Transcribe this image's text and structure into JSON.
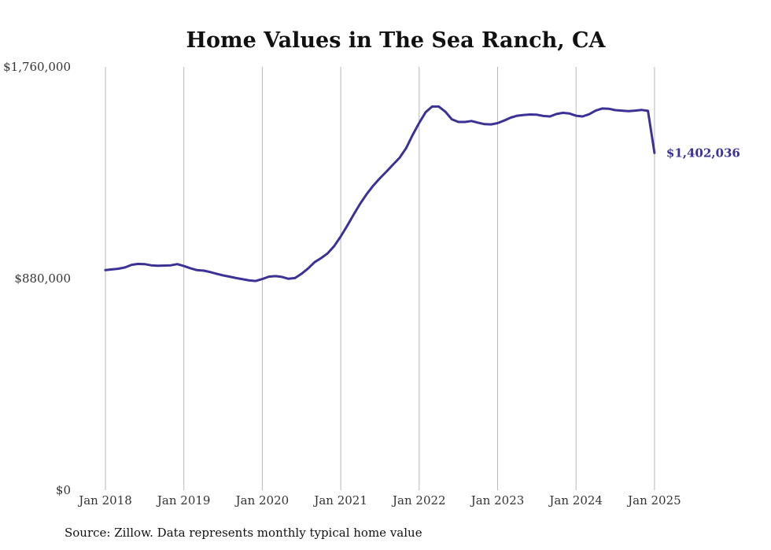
{
  "chart_data": {
    "type": "line",
    "title": "Home Values in The Sea Ranch, CA",
    "xlabel": "",
    "ylabel": "",
    "ylim": [
      0,
      1760000
    ],
    "y_ticks": [
      0,
      880000,
      1760000
    ],
    "y_tick_labels": [
      "$0",
      "$880,000",
      "$1,760,000"
    ],
    "x_tick_labels": [
      "Jan 2018",
      "Jan 2019",
      "Jan 2020",
      "Jan 2021",
      "Jan 2022",
      "Jan 2023",
      "Jan 2024",
      "Jan 2025"
    ],
    "grid": "vertical",
    "line_color": "#3b3196",
    "end_label": "$1,402,036",
    "series": [
      {
        "values": [
          915000,
          918000,
          921000,
          926000,
          937000,
          941000,
          940000,
          935000,
          933000,
          934000,
          935000,
          940000,
          932000,
          923000,
          915000,
          913000,
          907000,
          900000,
          893000,
          888000,
          882000,
          877000,
          872000,
          870000,
          878000,
          888000,
          890000,
          887000,
          879000,
          882000,
          900000,
          922000,
          948000,
          965000,
          985000,
          1015000,
          1055000,
          1100000,
          1147000,
          1192000,
          1232000,
          1267000,
          1297000,
          1325000,
          1354000,
          1382000,
          1422000,
          1477000,
          1527000,
          1572000,
          1595000,
          1595000,
          1574000,
          1542000,
          1531000,
          1531000,
          1535000,
          1528000,
          1522000,
          1521000,
          1526000,
          1537000,
          1549000,
          1557000,
          1560000,
          1562000,
          1561000,
          1556000,
          1554000,
          1564000,
          1569000,
          1566000,
          1557000,
          1554000,
          1563000,
          1578000,
          1587000,
          1586000,
          1580000,
          1578000,
          1576000,
          1578000,
          1581000,
          1577000,
          1402036
        ]
      }
    ]
  },
  "source_text": "Source: Zillow. Data represents monthly typical home value"
}
